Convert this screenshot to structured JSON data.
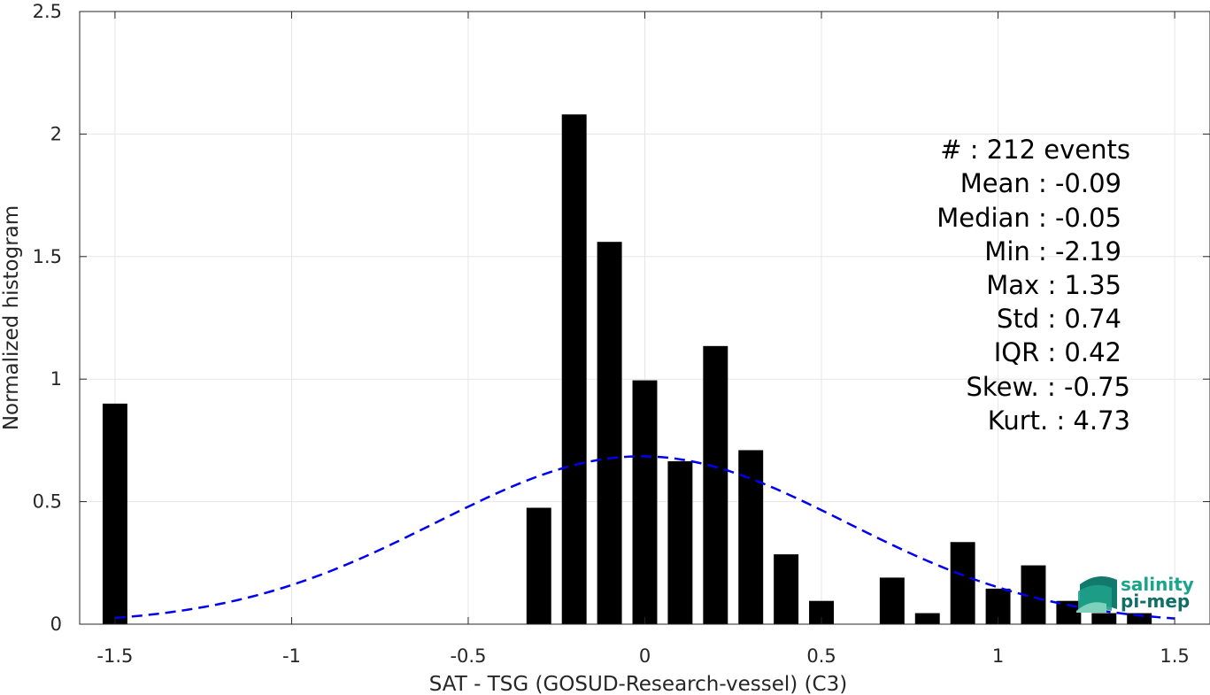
{
  "chart_data": {
    "type": "bar",
    "xlabel": "SAT - TSG (GOSUD-Research-vessel) (C3)",
    "ylabel": "Normalized histogram",
    "xlim": [
      -1.6,
      1.6
    ],
    "ylim": [
      0,
      2.5
    ],
    "grid": true,
    "xticks": [
      -1.5,
      -1,
      -0.5,
      0,
      0.5,
      1,
      1.5
    ],
    "xtick_labels": [
      "-1.5",
      "-1",
      "-0.5",
      "0",
      "0.5",
      "1",
      "1.5"
    ],
    "yticks": [
      0,
      0.5,
      1,
      1.5,
      2,
      2.5
    ],
    "ytick_labels": [
      "0",
      "0.5",
      "1",
      "1.5",
      "2",
      "2.5"
    ],
    "bar_width": 0.07,
    "bars": [
      {
        "x": -1.5,
        "y": 0.9
      },
      {
        "x": -0.3,
        "y": 0.475
      },
      {
        "x": -0.2,
        "y": 2.08
      },
      {
        "x": -0.1,
        "y": 1.56
      },
      {
        "x": 0.0,
        "y": 0.995
      },
      {
        "x": 0.1,
        "y": 0.665
      },
      {
        "x": 0.2,
        "y": 1.135
      },
      {
        "x": 0.3,
        "y": 0.71
      },
      {
        "x": 0.4,
        "y": 0.285
      },
      {
        "x": 0.5,
        "y": 0.095
      },
      {
        "x": 0.7,
        "y": 0.19
      },
      {
        "x": 0.8,
        "y": 0.045
      },
      {
        "x": 0.9,
        "y": 0.335
      },
      {
        "x": 1.0,
        "y": 0.145
      },
      {
        "x": 1.1,
        "y": 0.24
      },
      {
        "x": 1.2,
        "y": 0.095
      },
      {
        "x": 1.3,
        "y": 0.045
      },
      {
        "x": 1.4,
        "y": 0.045
      }
    ],
    "fit_curve": {
      "style": "dashed",
      "color": "#0000ee",
      "mean": -0.01,
      "std": 0.58,
      "peak": 0.685,
      "x_range": [
        -1.5,
        1.5
      ]
    },
    "bar_color": "#000000"
  },
  "stats": {
    "lines": [
      "#  : 212 events",
      "Mean : -0.09",
      "Median : -0.05",
      "Min : -2.19",
      "Max : 1.35",
      "Std : 0.74",
      "IQR : 0.42",
      "Skew. : -0.75",
      "Kurt. : 4.73"
    ]
  },
  "logo": {
    "line1": "salinity",
    "line2": "pi-mep",
    "color1": "#1aa58a",
    "color2": "#0f6e66"
  }
}
